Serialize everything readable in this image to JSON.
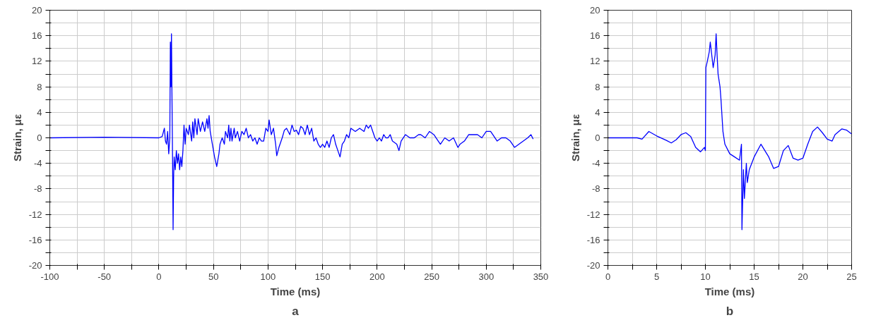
{
  "chart_data": [
    {
      "type": "line",
      "xlabel": "Time (ms)",
      "ylabel": "Strain, με",
      "annotations": [
        "a"
      ],
      "grid": true,
      "line_style": "solid",
      "xlim": [
        -100,
        350
      ],
      "ylim": [
        -20,
        20
      ],
      "xticks": [
        -100,
        {
          "value": -75,
          "label": null
        },
        -50,
        {
          "value": -25,
          "label": null
        },
        0,
        {
          "value": 25,
          "label": null
        },
        50,
        {
          "value": 75,
          "label": null
        },
        100,
        {
          "value": 125,
          "label": null
        },
        150,
        {
          "value": 175,
          "label": null
        },
        200,
        {
          "value": 225,
          "label": null
        },
        250,
        {
          "value": 275,
          "label": null
        },
        300,
        {
          "value": 325,
          "label": null
        },
        350
      ],
      "yticks": [
        -20,
        {
          "value": -18,
          "label": null
        },
        -16,
        {
          "value": -14,
          "label": null
        },
        -12,
        {
          "value": -10,
          "label": null
        },
        -8,
        {
          "value": -6,
          "label": null
        },
        -4,
        {
          "value": -2,
          "label": null
        },
        0,
        {
          "value": 2,
          "label": null
        },
        4,
        {
          "value": 6,
          "label": null
        },
        8,
        {
          "value": 10,
          "label": null
        },
        12,
        {
          "value": 14,
          "label": null
        },
        16,
        {
          "value": 18,
          "label": null
        },
        20
      ],
      "series": [
        {
          "color": "#0000ff",
          "x": [
            -100,
            -50,
            0,
            3,
            5,
            6,
            7,
            8,
            9,
            10,
            10.5,
            11,
            11.5,
            12,
            12.5,
            13,
            13.5,
            14,
            15,
            16,
            17,
            18,
            19,
            20,
            21,
            22,
            23,
            24,
            25,
            27,
            28,
            30,
            31,
            32,
            33,
            35,
            36,
            38,
            40,
            42,
            44,
            45,
            46,
            47,
            49,
            51,
            53,
            55,
            56,
            58,
            60,
            61,
            63,
            64,
            65,
            66,
            67,
            69,
            70,
            72,
            74,
            76,
            78,
            80,
            82,
            84,
            86,
            88,
            90,
            92,
            94,
            96,
            98,
            100,
            101,
            103,
            105,
            107,
            108,
            110,
            113,
            115,
            117,
            120,
            122,
            124,
            126,
            128,
            130,
            132,
            134,
            136,
            138,
            140,
            142,
            144,
            146,
            148,
            150,
            152,
            154,
            156,
            158,
            160,
            162,
            164,
            166,
            168,
            170,
            172,
            174,
            176,
            180,
            184,
            188,
            190,
            192,
            194,
            196,
            198,
            200,
            202,
            204,
            206,
            208,
            210,
            212,
            214,
            218,
            220,
            222,
            226,
            230,
            234,
            238,
            240,
            244,
            248,
            252,
            256,
            258,
            262,
            266,
            270,
            274,
            276,
            280,
            284,
            288,
            292,
            296,
            300,
            304,
            306,
            310,
            314,
            318,
            322,
            326,
            330,
            334,
            338,
            341,
            343
          ],
          "values": [
            0,
            0.1,
            0,
            0.2,
            1.5,
            -0.5,
            -1,
            1,
            -2.5,
            0,
            15,
            8,
            16.3,
            6,
            -3,
            -14.4,
            -6,
            -3,
            -5,
            -2,
            -4,
            -2.5,
            -5,
            -3,
            -4.5,
            -2,
            2,
            -1,
            1.5,
            0.5,
            2,
            -0.5,
            2.5,
            0,
            3,
            0.5,
            3,
            1,
            2.5,
            1,
            3,
            1.5,
            3.5,
            1,
            -1,
            -3,
            -4.5,
            -2.5,
            -1,
            0,
            -1,
            1,
            0,
            2,
            -0.5,
            1.5,
            -0.5,
            1.5,
            0,
            1,
            -0.5,
            1,
            0.5,
            1.5,
            0,
            0.5,
            -0.5,
            0,
            -1,
            0,
            -0.5,
            -0.5,
            1.5,
            1,
            2.8,
            0.5,
            1.5,
            -1,
            -2.8,
            -1.5,
            0,
            1.2,
            1.5,
            0.5,
            2,
            1,
            1.2,
            0.5,
            1.8,
            1.5,
            0.5,
            2,
            0.5,
            1.5,
            -0.5,
            0,
            -1,
            -1.5,
            -1,
            -1.5,
            -0.5,
            -1.5,
            0,
            0.5,
            -1,
            -2,
            -3,
            -1,
            -0.5,
            0.5,
            0,
            1.5,
            1,
            1.5,
            1,
            2,
            1.5,
            2,
            1,
            0,
            -0.5,
            0,
            -0.5,
            0.5,
            0,
            0,
            0.5,
            -0.5,
            -1,
            -2,
            -0.5,
            0.5,
            0,
            0,
            0.5,
            0.5,
            0,
            1,
            0.5,
            -0.5,
            -1,
            0,
            -0.5,
            0,
            -1.5,
            -1,
            -0.5,
            0.5,
            0.5,
            0.5,
            0,
            1,
            1,
            0.5,
            -0.5,
            0,
            0,
            -0.5,
            -1.5,
            -1,
            -0.5,
            0,
            0.5,
            -0.2
          ]
        }
      ]
    },
    {
      "type": "line",
      "xlabel": "Time (ms)",
      "ylabel": "Strain, με",
      "annotations": [
        "b"
      ],
      "grid": true,
      "line_style": "solid",
      "xlim": [
        0,
        25
      ],
      "ylim": [
        -20,
        20
      ],
      "xticks": [
        0,
        {
          "value": 2.5,
          "label": null
        },
        5,
        {
          "value": 7.5,
          "label": null
        },
        10,
        {
          "value": 12.5,
          "label": null
        },
        15,
        {
          "value": 17.5,
          "label": null
        },
        20,
        {
          "value": 22.5,
          "label": null
        },
        25
      ],
      "yticks": [
        -20,
        {
          "value": -18,
          "label": null
        },
        -16,
        {
          "value": -14,
          "label": null
        },
        -12,
        {
          "value": -10,
          "label": null
        },
        -8,
        {
          "value": -6,
          "label": null
        },
        -4,
        {
          "value": -2,
          "label": null
        },
        0,
        {
          "value": 2,
          "label": null
        },
        4,
        {
          "value": 6,
          "label": null
        },
        8,
        {
          "value": 10,
          "label": null
        },
        12,
        {
          "value": 14,
          "label": null
        },
        16,
        {
          "value": 18,
          "label": null
        },
        20
      ],
      "series": [
        {
          "color": "#0000ff",
          "x": [
            0,
            3,
            3.5,
            4.2,
            5,
            6,
            6.5,
            7,
            7.5,
            8,
            8.5,
            9,
            9.5,
            9.9,
            10,
            10.05,
            10.2,
            10.4,
            10.5,
            10.6,
            10.8,
            11,
            11.1,
            11.2,
            11.3,
            11.5,
            11.6,
            11.8,
            12,
            12.5,
            13,
            13.5,
            13.7,
            13.75,
            13.9,
            14,
            14.2,
            14.3,
            14.5,
            15,
            15.7,
            16.5,
            17,
            17.5,
            18,
            18.5,
            19,
            19.5,
            20,
            20.5,
            21,
            21.5,
            22,
            22.5,
            23,
            23.3,
            24,
            24.5,
            25
          ],
          "values": [
            0,
            0,
            -0.2,
            1,
            0.3,
            -0.4,
            -0.8,
            -0.3,
            0.5,
            0.8,
            0.2,
            -1.5,
            -2.2,
            -1.5,
            -2,
            11,
            12,
            13.5,
            15,
            13.7,
            11,
            13,
            16.3,
            13,
            10,
            8,
            6,
            1,
            -1,
            -2.5,
            -3,
            -3.5,
            -1,
            -14.4,
            -5,
            -9.5,
            -4,
            -7,
            -5,
            -3,
            -1,
            -3,
            -4.8,
            -4.5,
            -2,
            -1.2,
            -3.2,
            -3.5,
            -3.2,
            -1,
            1,
            1.7,
            0.8,
            -0.2,
            -0.5,
            0.5,
            1.4,
            1.2,
            0.6
          ]
        }
      ]
    }
  ]
}
